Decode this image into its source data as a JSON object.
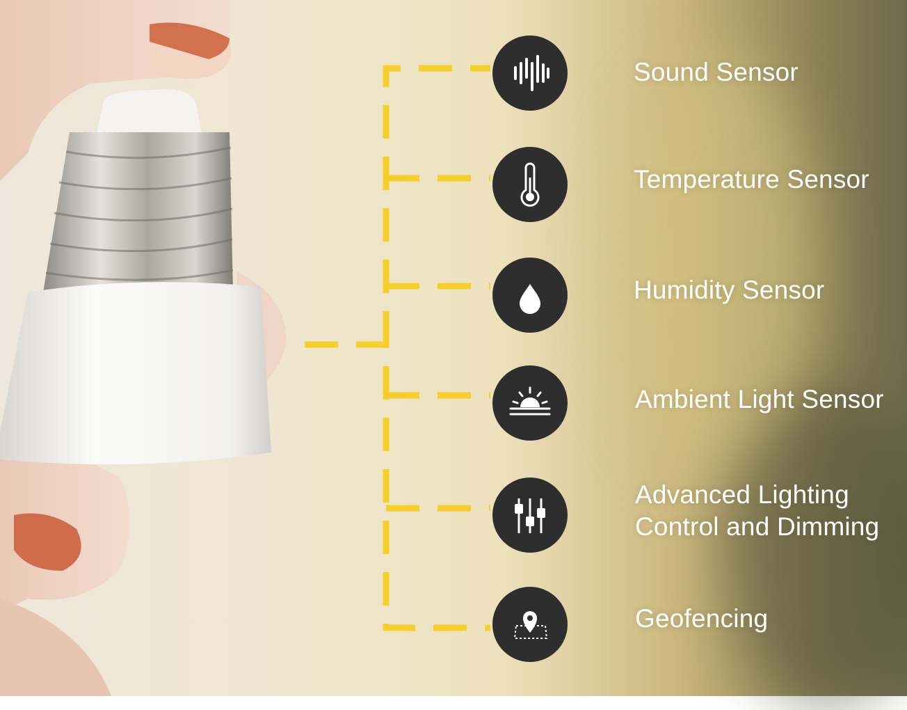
{
  "colors": {
    "connector": "#f7cf2b",
    "icon_circle": "#2e2e2e",
    "icon_glyph": "#ffffff",
    "label": "#ffffff"
  },
  "features": [
    {
      "label": "Sound Sensor",
      "icon": "sound-wave-icon"
    },
    {
      "label": "Temperature Sensor",
      "icon": "thermometer-icon"
    },
    {
      "label": "Humidity Sensor",
      "icon": "water-drop-icon"
    },
    {
      "label": "Ambient Light Sensor",
      "icon": "sunrise-icon"
    },
    {
      "label": "Advanced Lighting\nControl and Dimming",
      "icon": "sliders-icon"
    },
    {
      "label": "Geofencing",
      "icon": "map-pin-icon"
    }
  ]
}
